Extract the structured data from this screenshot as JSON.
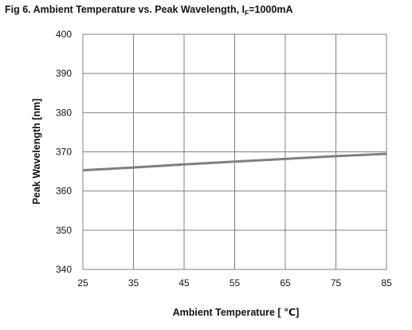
{
  "figure": {
    "title_main": "Fig 6. Ambient Temperature vs. Peak Wavelength, I",
    "title_sub": "F",
    "title_tail": "=1000mA"
  },
  "chart_data": {
    "type": "line",
    "title": "Fig 6. Ambient Temperature vs. Peak Wavelength, IF=1000mA",
    "xlabel": "Ambient Temperature [ ℃]",
    "ylabel": "Peak Wavelength [nm]",
    "xlim": [
      25,
      85
    ],
    "ylim": [
      340,
      400
    ],
    "xticks": [
      "25",
      "35",
      "45",
      "55",
      "65",
      "75",
      "85"
    ],
    "yticks": [
      "340",
      "350",
      "360",
      "370",
      "380",
      "390",
      "400"
    ],
    "grid": true,
    "legend": "none",
    "series": [
      {
        "color": "#7f7f7f",
        "x": [
          25,
          35,
          45,
          55,
          65,
          75,
          85
        ],
        "y": [
          365.3,
          366.0,
          366.8,
          367.5,
          368.2,
          368.9,
          369.5
        ]
      }
    ]
  }
}
